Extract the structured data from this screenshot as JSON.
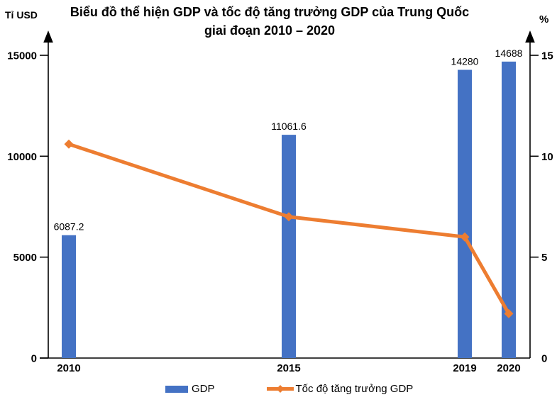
{
  "title": {
    "line1": "Biểu đồ thể hiện GDP và tốc độ tăng trưởng GDP của Trung Quốc",
    "line2": "giai đoạn 2010 – 2020"
  },
  "axis_units": {
    "left": "Tỉ USD",
    "right": "%"
  },
  "legend": {
    "items": [
      {
        "label": "GDP"
      },
      {
        "label": "Tốc độ tăng trưởng GDP"
      }
    ]
  },
  "palette": {
    "bar_blue": "#4472C4",
    "line_orange": "#ED7D31",
    "axis_black": "#000000"
  },
  "chart_data": {
    "type": "bar+line",
    "title": "Biểu đồ thể hiện GDP và tốc độ tăng trưởng GDP của Trung Quốc giai đoạn 2010 – 2020",
    "categories": [
      "2010",
      "2015",
      "2019",
      "2020"
    ],
    "x_layout": "time-proportional",
    "gridlines": false,
    "legend_position": "bottom",
    "series": [
      {
        "name": "GDP",
        "type": "bar",
        "axis": "left",
        "unit": "Tỉ USD",
        "color": "#4472C4",
        "values": [
          6087.2,
          11061.6,
          14280,
          14688
        ],
        "data_labels": [
          "6087.2",
          "11061.6",
          "14280",
          "14688"
        ]
      },
      {
        "name": "Tốc độ tăng trưởng GDP",
        "type": "line",
        "axis": "right",
        "unit": "%",
        "color": "#ED7D31",
        "marker": "diamond",
        "values": [
          10.6,
          7.0,
          6.0,
          2.2
        ]
      }
    ],
    "left_axis": {
      "label": "Tỉ USD",
      "range": [
        0,
        15000
      ],
      "ticks": [
        0,
        5000,
        10000,
        15000
      ],
      "tick_labels": [
        "0",
        "5000",
        "10000",
        "15000"
      ]
    },
    "right_axis": {
      "label": "%",
      "range": [
        0,
        15
      ],
      "ticks": [
        0,
        5,
        10,
        15
      ],
      "tick_labels": [
        "0",
        "5",
        "10",
        "15"
      ]
    }
  }
}
